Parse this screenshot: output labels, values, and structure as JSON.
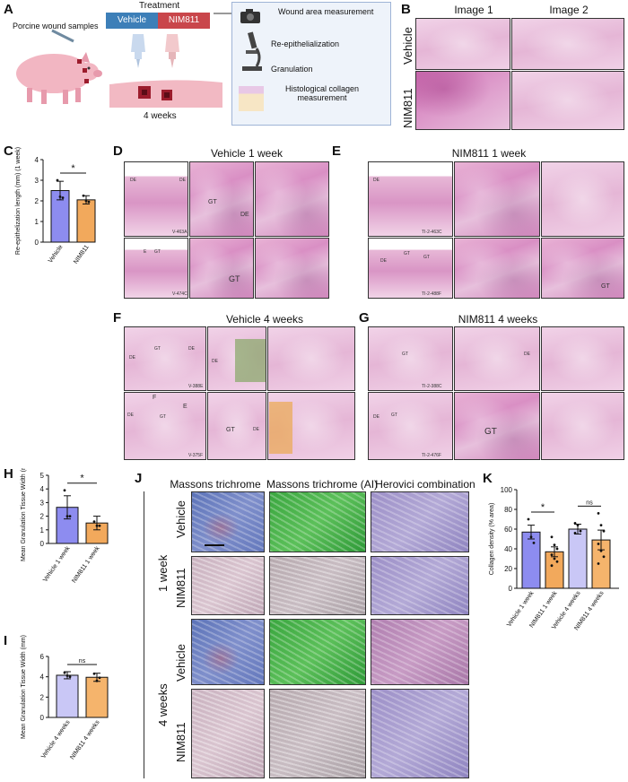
{
  "panels": {
    "A": {
      "letter": "A",
      "samples_label": "Porcine wound samples",
      "treatment_title": "Treatment",
      "vehicle_label": "Vehicle",
      "nim_label": "NIM811",
      "duration_label": "4 weeks",
      "steps": [
        "Wound area measurement",
        "Re-epithelialization",
        "Granulation",
        "Histological collagen measurement"
      ],
      "colors": {
        "vehicle": "#3d7fb8",
        "nim": "#c9464b",
        "box": "#eef3fa"
      }
    },
    "B": {
      "letter": "B",
      "col1": "Image 1",
      "col2": "Image 2",
      "row1": "Vehicle",
      "row2": "NIM811"
    },
    "C": {
      "letter": "C"
    },
    "D": {
      "letter": "D",
      "title": "Vehicle 1 week",
      "ids": [
        "V-463A",
        "V-474C"
      ],
      "tags": [
        "DE",
        "DE",
        "GT",
        "GT",
        "DE",
        "GT",
        "E"
      ]
    },
    "E": {
      "letter": "E",
      "title": "NIM811 1 week",
      "ids": [
        "TI-2-463C",
        "TI-2-488F"
      ],
      "tags": [
        "DE",
        "GT",
        "GT",
        "DE",
        "GT"
      ]
    },
    "F": {
      "letter": "F",
      "title": "Vehicle 4 weeks",
      "ids": [
        "V-388E",
        "V-375F"
      ],
      "tags": [
        "DE",
        "GT",
        "DE",
        "DE",
        "GT",
        "DE",
        "GT",
        "DE",
        "F",
        "E"
      ]
    },
    "G": {
      "letter": "G",
      "title": "NIM811 4 weeks",
      "ids": [
        "TI-2-388C",
        "TI-2-476F"
      ],
      "tags": [
        "GT",
        "DE",
        "DE",
        "GT",
        "GT"
      ]
    },
    "H": {
      "letter": "H"
    },
    "I": {
      "letter": "I"
    },
    "J": {
      "letter": "J",
      "cols": [
        "Massons trichrome",
        "Massons trichrome (AI)",
        "Herovici combination"
      ],
      "rows": [
        "Vehicle",
        "NIM811",
        "Vehicle",
        "NIM811"
      ],
      "groups": [
        "1 week",
        "4 weeks"
      ]
    },
    "K": {
      "letter": "K"
    }
  },
  "chart_data": [
    {
      "id": "C",
      "type": "bar",
      "categories": [
        "Vehicle",
        "NIM811"
      ],
      "values": [
        2.5,
        2.05
      ],
      "errors": [
        0.45,
        0.2
      ],
      "points": [
        [
          3.0,
          2.2,
          2.15
        ],
        [
          2.25,
          2.0,
          1.95
        ]
      ],
      "ylabel": "Re-epithelization length (mm) (1 week)",
      "ylim": [
        0,
        4
      ],
      "yticks": [
        "0",
        "1",
        "2",
        "3",
        "4"
      ],
      "significance": "*",
      "colors": [
        "#8d8cf0",
        "#f2a95c"
      ]
    },
    {
      "id": "H",
      "type": "bar",
      "categories": [
        "Vehicle 1 week",
        "NIM811 1 week"
      ],
      "values": [
        2.65,
        1.5
      ],
      "errors": [
        0.85,
        0.5
      ],
      "points": [
        [
          3.9,
          2.0,
          2.0
        ],
        [
          1.6,
          1.3,
          1.3
        ]
      ],
      "ylabel": "Mean Granulation Tissue Width (mm)",
      "ylim": [
        0,
        5
      ],
      "yticks": [
        "0",
        "1",
        "2",
        "3",
        "4",
        "5"
      ],
      "significance": "*",
      "colors": [
        "#8d8cf0",
        "#f2a95c"
      ]
    },
    {
      "id": "I",
      "type": "bar",
      "categories": [
        "Vehicle 4 weeks",
        "NIM811 4 weeks"
      ],
      "values": [
        4.15,
        3.95
      ],
      "errors": [
        0.35,
        0.4
      ],
      "points": [
        [
          4.4,
          4.1,
          4.0
        ],
        [
          4.3,
          3.6,
          3.9
        ]
      ],
      "ylabel": "Mean Granulation Tissue Width (mm)",
      "ylim": [
        0,
        6
      ],
      "yticks": [
        "0",
        "2",
        "4",
        "6"
      ],
      "significance": "ns",
      "colors": [
        "#c9c7f6",
        "#f5b46c"
      ]
    },
    {
      "id": "K",
      "type": "bar",
      "categories": [
        "Vehicle 1 week",
        "NIM811 1 week",
        "Vehicle 4 weeks",
        "NIM811 4 weeks"
      ],
      "values": [
        57,
        37,
        60,
        49
      ],
      "errors": [
        7,
        5,
        5,
        10
      ],
      "points": [
        [
          70,
          52,
          46
        ],
        [
          52,
          44,
          40,
          34,
          30,
          27,
          23
        ],
        [
          66,
          64,
          58,
          56
        ],
        [
          76,
          64,
          58,
          45,
          38,
          32,
          25
        ]
      ],
      "ylabel": "Collagen density (% area)",
      "ylim": [
        0,
        100
      ],
      "yticks": [
        "0",
        "20",
        "40",
        "60",
        "80",
        "100"
      ],
      "significance_pairs": [
        {
          "a": 0,
          "b": 1,
          "label": "*"
        },
        {
          "a": 2,
          "b": 3,
          "label": "ns"
        }
      ],
      "colors": [
        "#8d8cf0",
        "#f2a95c",
        "#c9c7f6",
        "#f5b46c"
      ]
    }
  ]
}
